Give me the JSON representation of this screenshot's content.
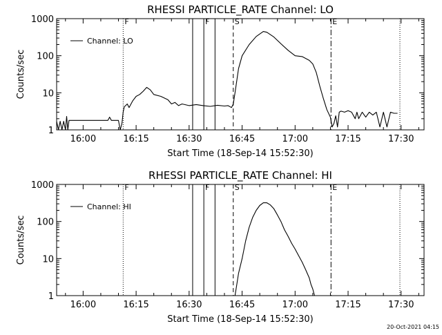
{
  "timestamp": "20-Oct-2021 04:15",
  "chart_data": [
    {
      "type": "line",
      "title": "RHESSI PARTICLE_RATE Channel: LO",
      "xlabel": "Start Time (18-Sep-14 15:52:30)",
      "ylabel": "Counts/sec",
      "yscale": "log",
      "ylim": [
        1,
        1000
      ],
      "xlim": [
        "15:52:30",
        "17:36:30"
      ],
      "x_tick_labels": [
        "16:00",
        "16:15",
        "16:30",
        "16:45",
        "17:00",
        "17:15",
        "17:30"
      ],
      "y_tick_labels": [
        "1",
        "10",
        "100",
        "1000"
      ],
      "legend": {
        "position": "top-left",
        "entries": [
          "Channel: LO"
        ]
      },
      "flag_lines": [
        {
          "time": "16:11:20",
          "style": "dotted",
          "label": "F"
        },
        {
          "time": "16:31:00",
          "style": "solid",
          "label": ""
        },
        {
          "time": "16:34:10",
          "style": "solid",
          "label": "F"
        },
        {
          "time": "16:37:20",
          "style": "solid",
          "label": ""
        },
        {
          "time": "16:42:30",
          "style": "dashed",
          "label": "S"
        },
        {
          "time": "17:10:10",
          "style": "dashdot",
          "label": "E"
        },
        {
          "time": "17:29:40",
          "style": "dotted",
          "label": ""
        }
      ],
      "series": [
        {
          "name": "Channel: LO",
          "segments": [
            [
              [
                "15:52:30",
                1.7
              ],
              [
                "15:53:00",
                1.0
              ],
              [
                "15:53:30",
                1.7
              ],
              [
                "15:54:00",
                1.0
              ],
              [
                "15:54:30",
                1.7
              ],
              [
                "15:55:00",
                1.0
              ],
              [
                "15:55:20",
                2.3
              ],
              [
                "15:55:40",
                1.0
              ],
              [
                "15:56:00",
                1.8
              ],
              [
                "16:00:00",
                1.8
              ],
              [
                "16:05:00",
                1.8
              ],
              [
                "16:07:00",
                1.8
              ],
              [
                "16:07:30",
                2.2
              ],
              [
                "16:08:00",
                1.8
              ],
              [
                "16:10:00",
                1.8
              ],
              [
                "16:10:30",
                1.0
              ],
              [
                "16:11:00",
                1.5
              ],
              [
                "16:11:20",
                3.0
              ],
              [
                "16:11:40",
                4.2
              ],
              [
                "16:12:30",
                5.0
              ],
              [
                "16:13:00",
                4.0
              ],
              [
                "16:14:00",
                6.0
              ],
              [
                "16:15:00",
                8.0
              ],
              [
                "16:16:00",
                9.0
              ],
              [
                "16:17:00",
                11.0
              ],
              [
                "16:18:00",
                14.0
              ],
              [
                "16:19:00",
                12.0
              ],
              [
                "16:20:00",
                9.0
              ],
              [
                "16:22:00",
                8.0
              ],
              [
                "16:24:00",
                6.5
              ],
              [
                "16:25:00",
                5.0
              ],
              [
                "16:26:00",
                5.5
              ],
              [
                "16:27:00",
                4.5
              ],
              [
                "16:28:00",
                5.0
              ],
              [
                "16:30:00",
                4.5
              ],
              [
                "16:32:00",
                4.8
              ],
              [
                "16:34:00",
                4.5
              ],
              [
                "16:36:00",
                4.3
              ],
              [
                "16:38:00",
                4.6
              ],
              [
                "16:40:00",
                4.4
              ],
              [
                "16:41:00",
                4.5
              ],
              [
                "16:42:00",
                4.0
              ],
              [
                "16:42:30",
                5.0
              ],
              [
                "16:43:00",
                10.0
              ],
              [
                "16:44:00",
                45.0
              ],
              [
                "16:45:00",
                100.0
              ],
              [
                "16:47:00",
                200.0
              ],
              [
                "16:49:00",
                330.0
              ],
              [
                "16:51:00",
                450.0
              ],
              [
                "16:52:00",
                430.0
              ],
              [
                "16:54:00",
                320.0
              ],
              [
                "16:56:00",
                210.0
              ],
              [
                "16:58:00",
                140.0
              ],
              [
                "17:00:00",
                100.0
              ],
              [
                "17:02:00",
                95.0
              ],
              [
                "17:04:00",
                75.0
              ],
              [
                "17:05:00",
                60.0
              ],
              [
                "17:06:00",
                35.0
              ],
              [
                "17:07:00",
                15.0
              ],
              [
                "17:08:00",
                7.0
              ],
              [
                "17:09:00",
                3.5
              ],
              [
                "17:10:00",
                2.2
              ],
              [
                "17:10:30",
                1.2
              ],
              [
                "17:11:00",
                1.5
              ],
              [
                "17:11:30",
                2.4
              ],
              [
                "17:12:00",
                1.2
              ],
              [
                "17:12:30",
                3.0
              ],
              [
                "17:13:00",
                3.2
              ],
              [
                "17:14:00",
                3.0
              ],
              [
                "17:15:00",
                3.3
              ],
              [
                "17:16:00",
                3.0
              ],
              [
                "17:17:00",
                2.0
              ],
              [
                "17:17:30",
                3.0
              ],
              [
                "17:18:00",
                2.0
              ],
              [
                "17:19:00",
                3.0
              ],
              [
                "17:20:00",
                2.2
              ],
              [
                "17:21:00",
                3.0
              ],
              [
                "17:22:00",
                2.5
              ],
              [
                "17:23:00",
                3.0
              ],
              [
                "17:24:00",
                1.2
              ],
              [
                "17:25:00",
                3.0
              ],
              [
                "17:26:00",
                1.2
              ],
              [
                "17:27:00",
                3.0
              ],
              [
                "17:28:00",
                2.8
              ],
              [
                "17:29:00",
                2.8
              ]
            ]
          ]
        }
      ]
    },
    {
      "type": "line",
      "title": "RHESSI PARTICLE_RATE Channel: HI",
      "xlabel": "Start Time (18-Sep-14 15:52:30)",
      "ylabel": "Counts/sec",
      "yscale": "log",
      "ylim": [
        1,
        1000
      ],
      "xlim": [
        "15:52:30",
        "17:36:30"
      ],
      "x_tick_labels": [
        "16:00",
        "16:15",
        "16:30",
        "16:45",
        "17:00",
        "17:15",
        "17:30"
      ],
      "y_tick_labels": [
        "1",
        "10",
        "100",
        "1000"
      ],
      "legend": {
        "position": "top-left",
        "entries": [
          "Channel: HI"
        ]
      },
      "flag_lines": [
        {
          "time": "16:11:20",
          "style": "dotted",
          "label": "F"
        },
        {
          "time": "16:31:00",
          "style": "solid",
          "label": ""
        },
        {
          "time": "16:34:10",
          "style": "solid",
          "label": "F"
        },
        {
          "time": "16:37:20",
          "style": "solid",
          "label": ""
        },
        {
          "time": "16:42:30",
          "style": "dashed",
          "label": "S"
        },
        {
          "time": "17:10:10",
          "style": "dashdot",
          "label": "E"
        },
        {
          "time": "17:29:40",
          "style": "dotted",
          "label": ""
        }
      ],
      "series": [
        {
          "name": "Channel: HI",
          "segments": [
            [
              [
                "16:43:00",
                1.0
              ],
              [
                "16:43:30",
                2.0
              ],
              [
                "16:44:00",
                4.0
              ],
              [
                "16:45:00",
                10.0
              ],
              [
                "16:46:00",
                30.0
              ],
              [
                "16:47:00",
                70.0
              ],
              [
                "16:48:00",
                130.0
              ],
              [
                "16:49:00",
                200.0
              ],
              [
                "16:50:00",
                270.0
              ],
              [
                "16:51:00",
                320.0
              ],
              [
                "16:52:00",
                320.0
              ],
              [
                "16:53:00",
                280.0
              ],
              [
                "16:54:00",
                220.0
              ],
              [
                "16:55:00",
                150.0
              ],
              [
                "16:56:00",
                100.0
              ],
              [
                "16:57:00",
                60.0
              ],
              [
                "16:58:00",
                40.0
              ],
              [
                "16:59:00",
                26.0
              ],
              [
                "17:00:00",
                18.0
              ],
              [
                "17:01:00",
                12.0
              ],
              [
                "17:02:00",
                8.0
              ],
              [
                "17:03:00",
                5.0
              ],
              [
                "17:04:00",
                3.0
              ],
              [
                "17:04:30",
                2.0
              ],
              [
                "17:05:00",
                1.5
              ],
              [
                "17:05:30",
                1.0
              ]
            ]
          ]
        }
      ]
    }
  ]
}
